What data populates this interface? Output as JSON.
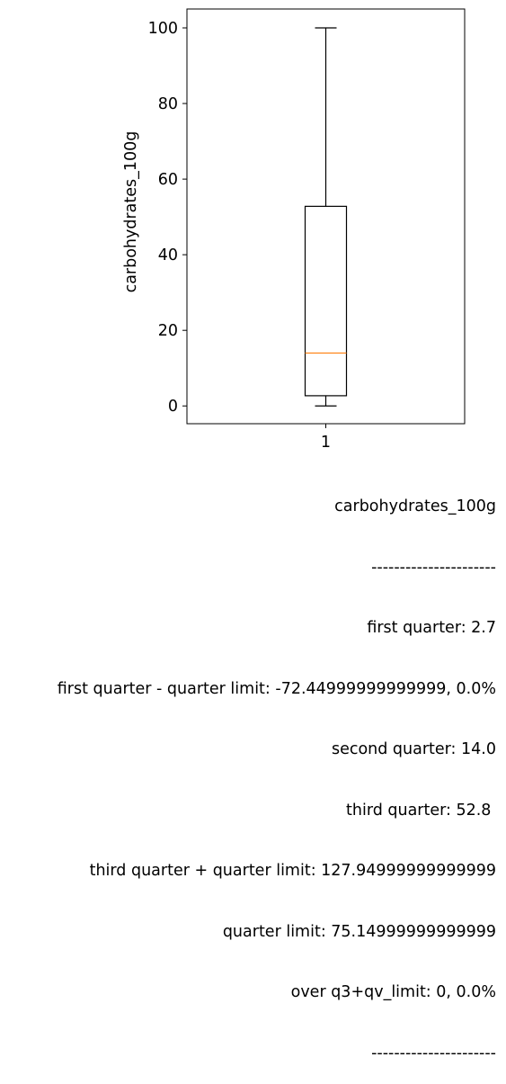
{
  "chart_data": {
    "type": "boxplot",
    "categories": [
      "1"
    ],
    "box": {
      "whisker_low": 0,
      "q1": 2.7,
      "median": 14.0,
      "q3": 52.8,
      "whisker_high": 100
    },
    "ylabel": "carbohydrates_100g",
    "xlabel": "",
    "ylim": [
      -4.7,
      105
    ],
    "yticks": [
      0,
      20,
      40,
      60,
      80,
      100
    ],
    "colors": {
      "box": "#000000",
      "median": "#ff7f0e"
    }
  },
  "stats": {
    "lines": [
      "carbohydrates_100g",
      "----------------------",
      "first quarter: 2.7",
      "first quarter - quarter limit: -72.44999999999999, 0.0%",
      "second quarter: 14.0",
      "third quarter: 52.8 ",
      "third quarter + quarter limit: 127.94999999999999",
      "quarter limit: 75.14999999999999",
      "over q3+qv_limit: 0, 0.0%",
      "----------------------"
    ]
  }
}
